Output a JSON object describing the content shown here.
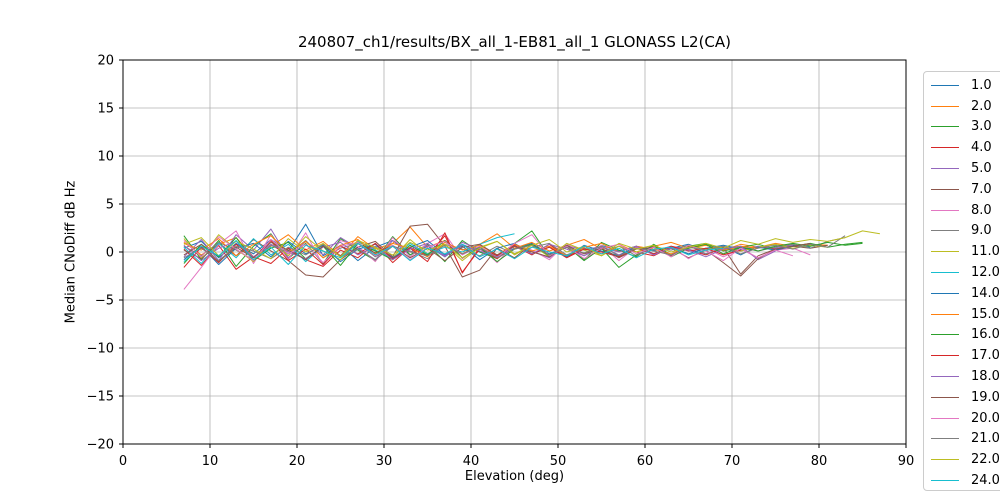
{
  "chart_data": {
    "type": "line",
    "title": "240807_ch1/results/BX_all_1-EB81_all_1 GLONASS L2(CA)",
    "xlabel": "Elevation (deg)",
    "ylabel": "Median CNoDiff dB Hz",
    "xlim": [
      0,
      90
    ],
    "ylim": [
      -20,
      20
    ],
    "xticks": [
      0,
      10,
      20,
      30,
      40,
      50,
      60,
      70,
      80,
      90
    ],
    "xtick_labels": [
      "0",
      "10",
      "20",
      "30",
      "40",
      "50",
      "60",
      "70",
      "80",
      "90"
    ],
    "yticks": [
      -20,
      -15,
      -10,
      -5,
      0,
      5,
      10,
      15,
      20
    ],
    "ytick_labels": [
      "−20",
      "−15",
      "−10",
      "−5",
      "0",
      "5",
      "10",
      "15",
      "20"
    ],
    "grid": true,
    "grid_color": "#b0b0b0",
    "spine_color": "#000000",
    "legend_position": "right-outside",
    "line_width": 1,
    "series": [
      {
        "name": "1.0",
        "color": "#1f77b4",
        "x0": 7,
        "dx": 2,
        "y": [
          0.4,
          1.1,
          -0.6,
          0.9,
          -0.2,
          1.3,
          0.1,
          2.9,
          -0.4,
          0.7,
          -0.9,
          0.5,
          1.2,
          -0.3,
          0.6,
          -0.5,
          0.8,
          0.0,
          -0.6,
          0.4,
          0.9,
          -0.2,
          0.5,
          -0.4,
          0.7,
          0.1,
          0.6,
          -0.2,
          0.4,
          0.8,
          0.2,
          0.5,
          -0.3,
          0.6,
          0.3,
          0.7,
          0.5
        ]
      },
      {
        "name": "2.0",
        "color": "#ff7f0e",
        "x0": 7,
        "dx": 2,
        "y": [
          1.0,
          -0.3,
          0.8,
          1.5,
          -0.5,
          0.6,
          1.8,
          0.2,
          1.1,
          -0.4,
          1.6,
          0.3,
          0.9,
          2.6,
          0.5,
          1.2,
          -0.2,
          0.8,
          1.9,
          0.4,
          1.0,
          0.1,
          0.7,
          1.3,
          0.3,
          0.8,
          0.0,
          0.6,
          1.0,
          0.4,
          0.7,
          0.2,
          0.8,
          0.5,
          0.9,
          0.6,
          0.8,
          0.7
        ]
      },
      {
        "name": "3.0",
        "color": "#2ca02c",
        "x0": 7,
        "dx": 2,
        "y": [
          1.7,
          -0.8,
          1.2,
          -1.5,
          0.6,
          1.9,
          -0.7,
          0.9,
          -1.2,
          1.4,
          0.2,
          -0.9,
          1.6,
          -0.3,
          0.8,
          -1.0,
          1.2,
          0.0,
          -0.7,
          0.9,
          2.2,
          -0.5,
          0.7,
          -0.8,
          1.0,
          0.2,
          -0.5,
          0.8,
          -0.3,
          0.6,
          0.9,
          0.1,
          0.5,
          0.8,
          0.3,
          0.6,
          0.9,
          0.5,
          0.8,
          1.0
        ]
      },
      {
        "name": "4.0",
        "color": "#d62728",
        "x0": 7,
        "dx": 2,
        "y": [
          0.3,
          -1.4,
          0.7,
          -1.8,
          -0.5,
          -1.2,
          0.4,
          -0.8,
          -1.5,
          0.2,
          -0.6,
          0.9,
          -1.1,
          0.5,
          -0.4,
          1.7,
          -2.1,
          0.3,
          -0.7,
          0.6,
          -0.3,
          0.8,
          -0.5,
          0.4,
          -0.2,
          0.6,
          0.0,
          -0.4,
          0.5,
          0.2,
          -0.3,
          0.4,
          0.1,
          0.5,
          0.3
        ]
      },
      {
        "name": "5.0",
        "color": "#9467bd",
        "x0": 7,
        "dx": 2,
        "y": [
          -0.5,
          1.3,
          -0.9,
          1.8,
          0.2,
          2.4,
          -0.6,
          1.1,
          -0.3,
          1.5,
          0.4,
          -0.8,
          1.2,
          0.0,
          0.7,
          -0.5,
          1.0,
          0.3,
          -0.4,
          0.8,
          0.1,
          -0.6,
          0.7,
          0.2,
          0.6,
          -0.3,
          0.5,
          0.1,
          0.6,
          0.3,
          -0.2,
          0.5,
          0.2,
          0.6,
          0.4,
          0.7
        ]
      },
      {
        "name": "7.0",
        "color": "#8c564b",
        "x0": 7,
        "dx": 2,
        "y": [
          0.2,
          -0.7,
          0.9,
          -0.4,
          1.3,
          0.1,
          -0.9,
          -2.4,
          -2.6,
          -0.8,
          0.5,
          1.1,
          -0.5,
          2.7,
          2.9,
          0.6,
          -2.6,
          -1.9,
          0.4,
          -0.6,
          0.8,
          -0.3,
          0.5,
          -0.7,
          0.3,
          -0.5,
          0.6,
          -0.2,
          0.4,
          -0.6,
          0.2,
          0.5,
          -2.3,
          -0.4,
          0.3,
          0.6,
          0.4,
          0.7
        ]
      },
      {
        "name": "8.0",
        "color": "#e377c2",
        "x0": 7,
        "dx": 2,
        "y": [
          -3.9,
          -1.6,
          0.8,
          2.2,
          -1.2,
          1.8,
          -0.8,
          2.0,
          -1.4,
          1.2,
          0.6,
          -1.0,
          1.5,
          -0.5,
          0.9,
          1.9,
          -0.7,
          0.6,
          -1.1,
          0.8,
          0.2,
          -0.8,
          0.9,
          -0.4,
          0.7,
          -0.9,
          0.5,
          -0.3,
          0.6,
          -0.7,
          0.4,
          -0.5,
          0.3,
          -0.6,
          0.2,
          0.4,
          -0.3
        ]
      },
      {
        "name": "9.0",
        "color": "#7f7f7f",
        "x0": 7,
        "dx": 2,
        "y": [
          0.6,
          -0.4,
          1.0,
          0.2,
          -0.8,
          0.7,
          -0.2,
          1.2,
          -0.6,
          0.4,
          0.9,
          -0.5,
          0.6,
          0.1,
          -0.7,
          0.8,
          0.3,
          -0.4,
          0.6,
          -0.2,
          0.5,
          0.9,
          -0.3,
          0.4,
          0.0,
          0.6,
          -0.4,
          0.5,
          0.2,
          0.7,
          -0.2,
          0.4,
          0.6,
          0.1,
          0.5,
          0.8,
          0.4,
          1.1,
          1.5
        ]
      },
      {
        "name": "11.0",
        "color": "#bcbd22",
        "x0": 7,
        "dx": 2,
        "y": [
          1.4,
          -0.6,
          1.8,
          0.3,
          -1.0,
          1.2,
          -0.4,
          1.6,
          0.1,
          -0.8,
          1.0,
          0.4,
          -0.6,
          1.3,
          -0.2,
          0.8,
          -0.9,
          0.5,
          1.1,
          -0.3,
          0.7,
          -0.5,
          0.9,
          0.2,
          -0.4,
          0.6,
          0.0,
          0.5,
          -0.3,
          0.7,
          0.3,
          0.6,
          0.1,
          0.5,
          0.8,
          0.4,
          0.7,
          0.5
        ]
      },
      {
        "name": "12.0",
        "color": "#17becf",
        "x0": 7,
        "dx": 2,
        "y": [
          0.5,
          -1.2,
          0.9,
          -0.6,
          1.4,
          -0.3,
          0.8,
          -1.0,
          0.6,
          -0.4,
          1.1,
          0.2,
          -0.7,
          0.9,
          -0.2,
          0.5,
          0.0,
          0.8,
          1.5,
          1.9
        ]
      },
      {
        "name": "14.0",
        "color": "#1f77b4",
        "x0": 7,
        "dx": 2,
        "y": [
          -0.8,
          0.6,
          -1.3,
          0.4,
          0.9,
          -0.5,
          1.1,
          -0.2,
          0.7,
          -1.0,
          0.3,
          0.8,
          -0.6,
          0.5,
          1.2,
          -0.3,
          0.6,
          -0.8,
          0.4,
          0.9,
          -0.2,
          0.5,
          -0.5,
          0.7,
          0.1,
          -0.4,
          0.6,
          0.2,
          0.5,
          -0.2,
          0.4,
          0.7,
          0.3,
          0.5,
          0.2,
          0.6
        ]
      },
      {
        "name": "15.0",
        "color": "#ff7f0e",
        "x0": 7,
        "dx": 2,
        "y": [
          0.9,
          0.2,
          1.4,
          -0.4,
          0.8,
          1.7,
          0.0,
          1.1,
          -0.6,
          0.7,
          1.3,
          -0.2,
          0.9,
          0.4,
          -0.5,
          1.0,
          0.2,
          0.7,
          -0.3,
          0.8,
          0.1,
          0.6,
          -0.4,
          0.5,
          0.9,
          0.0,
          0.6,
          0.3,
          -0.2,
          0.5,
          0.7,
          0.2,
          0.6,
          0.4
        ]
      },
      {
        "name": "16.0",
        "color": "#2ca02c",
        "x0": 7,
        "dx": 2,
        "y": [
          -1.2,
          0.8,
          -0.5,
          1.5,
          -0.9,
          0.4,
          1.0,
          -0.7,
          0.6,
          -1.4,
          0.9,
          0.1,
          -0.8,
          0.7,
          -0.3,
          1.2,
          -0.6,
          0.5,
          -1.0,
          0.3,
          0.8,
          -0.4,
          0.6,
          -0.9,
          0.4,
          -1.6,
          -0.3,
          0.7,
          -0.5,
          0.4,
          0.8,
          -0.2,
          0.5,
          0.1,
          0.6,
          0.9,
          0.6,
          1.0,
          0.7,
          0.9
        ]
      },
      {
        "name": "17.0",
        "color": "#d62728",
        "x0": 7,
        "dx": 2,
        "y": [
          -1.6,
          0.5,
          -1.1,
          0.8,
          -0.6,
          1.2,
          -0.9,
          0.3,
          -1.3,
          0.6,
          -0.2,
          0.9,
          -0.7,
          0.4,
          -1.0,
          2.0,
          -2.2,
          0.5,
          -0.4,
          0.7,
          -0.2,
          0.5,
          -0.6,
          0.3,
          0.0,
          -0.5,
          0.4,
          -0.2,
          0.6,
          0.1,
          0.4,
          -0.3,
          0.2
        ]
      },
      {
        "name": "18.0",
        "color": "#9467bd",
        "x0": 7,
        "dx": 2,
        "y": [
          0.7,
          -0.9,
          0.4,
          1.1,
          -0.5,
          0.8,
          0.0,
          -0.7,
          0.5,
          1.0,
          -0.3,
          0.6,
          -0.8,
          0.3,
          0.9,
          -0.4,
          0.7,
          0.1,
          -0.5,
          0.6,
          -0.2,
          0.8,
          0.3,
          -0.4,
          0.5,
          0.0,
          0.6,
          -0.3,
          0.4,
          0.2,
          -0.5,
          0.3,
          0.6,
          -0.8,
          0.1
        ]
      },
      {
        "name": "19.0",
        "color": "#8c564b",
        "x0": 7,
        "dx": 2,
        "y": [
          -0.3,
          0.8,
          -1.0,
          0.5,
          -0.6,
          1.0,
          0.2,
          -0.8,
          0.6,
          -0.4,
          0.9,
          -0.1,
          0.7,
          -0.6,
          0.4,
          -0.9,
          0.5,
          0.8,
          -0.3,
          0.6,
          0.0,
          -0.5,
          0.7,
          -0.2,
          0.4,
          -0.6,
          0.3,
          0.5,
          -0.4,
          0.6,
          0.2,
          -1.1,
          -2.5,
          -0.7,
          0.3,
          0.6,
          0.9
        ]
      },
      {
        "name": "20.0",
        "color": "#e377c2",
        "x0": 7,
        "dx": 2,
        "y": [
          1.2,
          -0.5,
          1.6,
          0.3,
          -0.9,
          1.3,
          -0.2,
          0.8,
          -1.1,
          0.6,
          1.0,
          -0.4,
          0.7,
          -0.8,
          0.5,
          1.1,
          -0.3,
          0.6,
          -0.6,
          0.9,
          1.8,
          -0.4,
          0.6,
          -0.7,
          0.4,
          0.8,
          -0.2,
          0.5,
          -0.5,
          0.7,
          0.1,
          -0.9,
          0.4,
          -0.6,
          0.2,
          -0.4
        ]
      },
      {
        "name": "21.0",
        "color": "#7f7f7f",
        "x0": 7,
        "dx": 2,
        "y": [
          -0.6,
          0.4,
          -0.9,
          0.6,
          0.1,
          -0.7,
          0.5,
          -0.3,
          0.8,
          -0.5,
          0.3,
          -0.8,
          0.6,
          0.0,
          -0.4,
          0.7,
          -0.2,
          0.5,
          -0.6,
          0.3,
          0.7,
          -0.3,
          0.5,
          -0.1,
          0.6,
          -0.4,
          0.4,
          0.1,
          -0.3,
          0.5,
          0.2,
          0.6,
          -0.2,
          0.4,
          0.7,
          0.3,
          0.8,
          0.5,
          1.7
        ]
      },
      {
        "name": "22.0",
        "color": "#bcbd22",
        "x0": 7,
        "dx": 2,
        "y": [
          0.8,
          1.5,
          -0.4,
          1.1,
          0.3,
          -0.7,
          1.4,
          0.0,
          0.9,
          -0.5,
          1.2,
          0.5,
          -0.3,
          1.0,
          0.2,
          0.8,
          -0.6,
          0.4,
          1.1,
          -0.2,
          0.7,
          1.3,
          0.0,
          0.6,
          -0.4,
          0.9,
          0.3,
          0.7,
          0.0,
          0.5,
          0.9,
          0.4,
          1.2,
          0.8,
          1.4,
          1.0,
          1.3,
          1.1,
          1.5,
          2.2,
          1.9
        ]
      },
      {
        "name": "24.0",
        "color": "#17becf",
        "x0": 7,
        "dx": 2,
        "y": [
          -1.0,
          0.6,
          -0.4,
          1.2,
          -0.8,
          0.5,
          -1.3,
          0.7,
          0.1,
          -0.6,
          0.9,
          -0.3,
          0.6,
          -0.9,
          0.4,
          -0.2,
          0.8,
          -0.5,
          0.3,
          -0.7,
          0.5,
          0.0,
          -0.4,
          0.6,
          -0.2,
          0.4,
          -0.6,
          0.3,
          0.5,
          -0.3,
          0.2,
          0.4
        ]
      }
    ]
  }
}
